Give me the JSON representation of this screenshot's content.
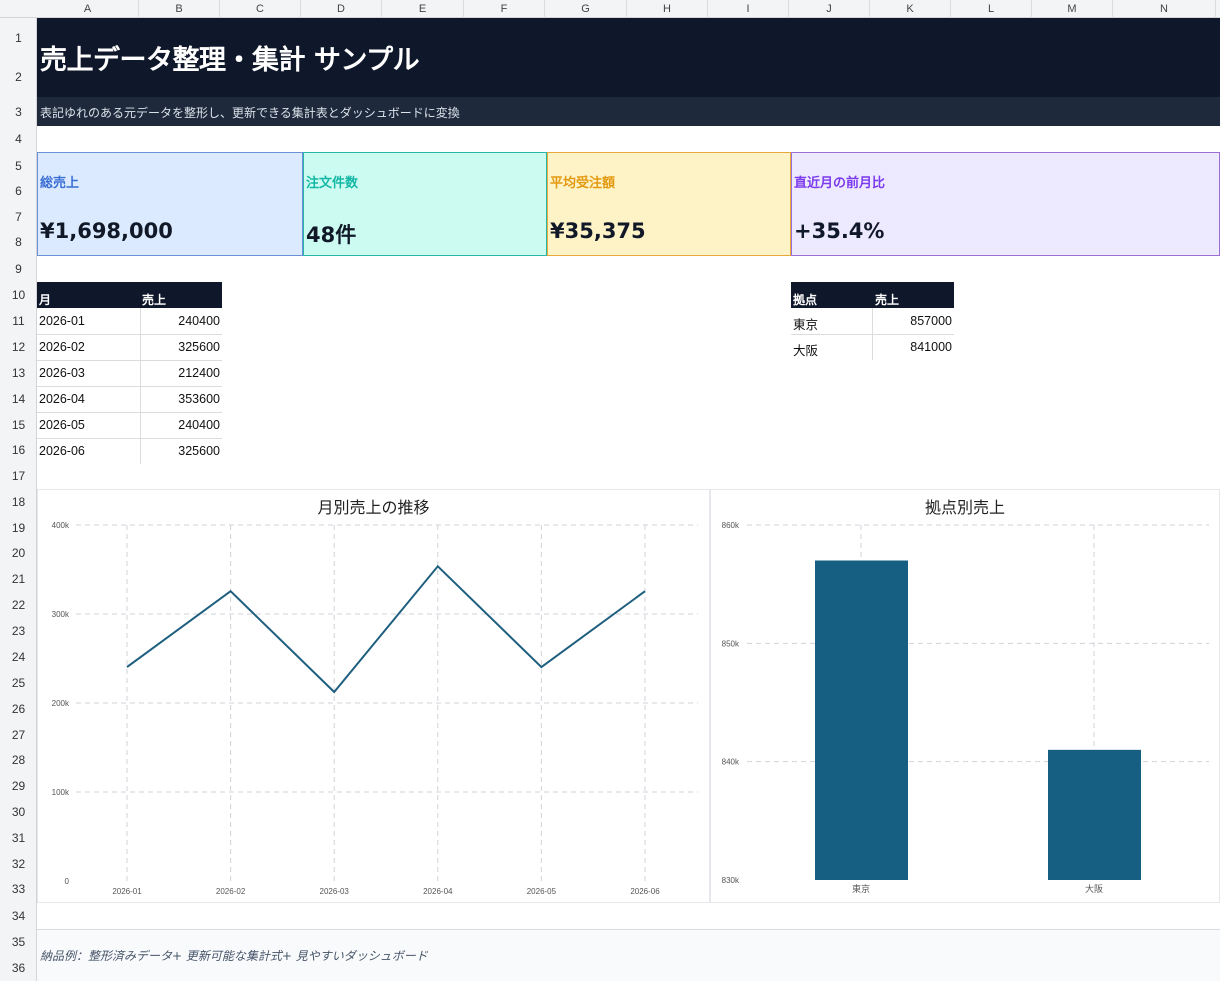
{
  "columns": [
    "A",
    "B",
    "C",
    "D",
    "E",
    "F",
    "G",
    "H",
    "I",
    "J",
    "K",
    "L",
    "M",
    "N"
  ],
  "rows": [
    "1",
    "2",
    "3",
    "4",
    "5",
    "6",
    "7",
    "8",
    "9",
    "10",
    "11",
    "12",
    "13",
    "14",
    "15",
    "16",
    "17",
    "18",
    "19",
    "20",
    "21",
    "22",
    "23",
    "24",
    "25",
    "26",
    "27",
    "28",
    "29",
    "30",
    "31",
    "32",
    "33",
    "34",
    "35",
    "36"
  ],
  "header": {
    "title": "売上データ整理・集計 サンプル",
    "subtitle": "表記ゆれのある元データを整形し、更新できる集計表とダッシュボードに変換"
  },
  "kpis": [
    {
      "label": "総売上",
      "value": "¥1,698,000",
      "accent": "#3b6fd4",
      "bg": "#dbeafe",
      "border": "#6b8fd8"
    },
    {
      "label": "注文件数",
      "value": "48件",
      "accent": "#14b8a6",
      "bg": "#ccfbf1",
      "border": "#2bb5a5"
    },
    {
      "label": "平均受注額",
      "value": "¥35,375",
      "accent": "#e39a12",
      "bg": "#fef3c7",
      "border": "#e6a93a"
    },
    {
      "label": "直近月の前月比",
      "value": "+35.4%",
      "accent": "#7c3aed",
      "bg": "#ede9fe",
      "border": "#9b6fd6"
    }
  ],
  "monthly_table": {
    "headers": [
      "月",
      "売上"
    ],
    "rows": [
      [
        "2026-01",
        "240400"
      ],
      [
        "2026-02",
        "325600"
      ],
      [
        "2026-03",
        "212400"
      ],
      [
        "2026-04",
        "353600"
      ],
      [
        "2026-05",
        "240400"
      ],
      [
        "2026-06",
        "325600"
      ]
    ]
  },
  "location_table": {
    "headers": [
      "拠点",
      "売上"
    ],
    "rows": [
      [
        "東京",
        "857000"
      ],
      [
        "大阪",
        "841000"
      ]
    ]
  },
  "chart_data": [
    {
      "type": "line",
      "title": "月別売上の推移",
      "x": [
        "2026-01",
        "2026-02",
        "2026-03",
        "2026-04",
        "2026-05",
        "2026-06"
      ],
      "values": [
        240400,
        325600,
        212400,
        353600,
        240400,
        325600
      ],
      "ylim": [
        0,
        400000
      ],
      "yticks": [
        "0",
        "100k",
        "200k",
        "300k",
        "400k"
      ],
      "color": "#1e5f7f",
      "grid": true
    },
    {
      "type": "bar",
      "title": "拠点別売上",
      "categories": [
        "東京",
        "大阪"
      ],
      "values": [
        857000,
        841000
      ],
      "ylim": [
        830000,
        860000
      ],
      "yticks": [
        "830k",
        "840k",
        "850k",
        "860k"
      ],
      "color": "#175f82",
      "grid": true
    }
  ],
  "footer": {
    "note": "納品例：整形済みデータ+ 更新可能な集計式+ 見やすいダッシュボード"
  }
}
